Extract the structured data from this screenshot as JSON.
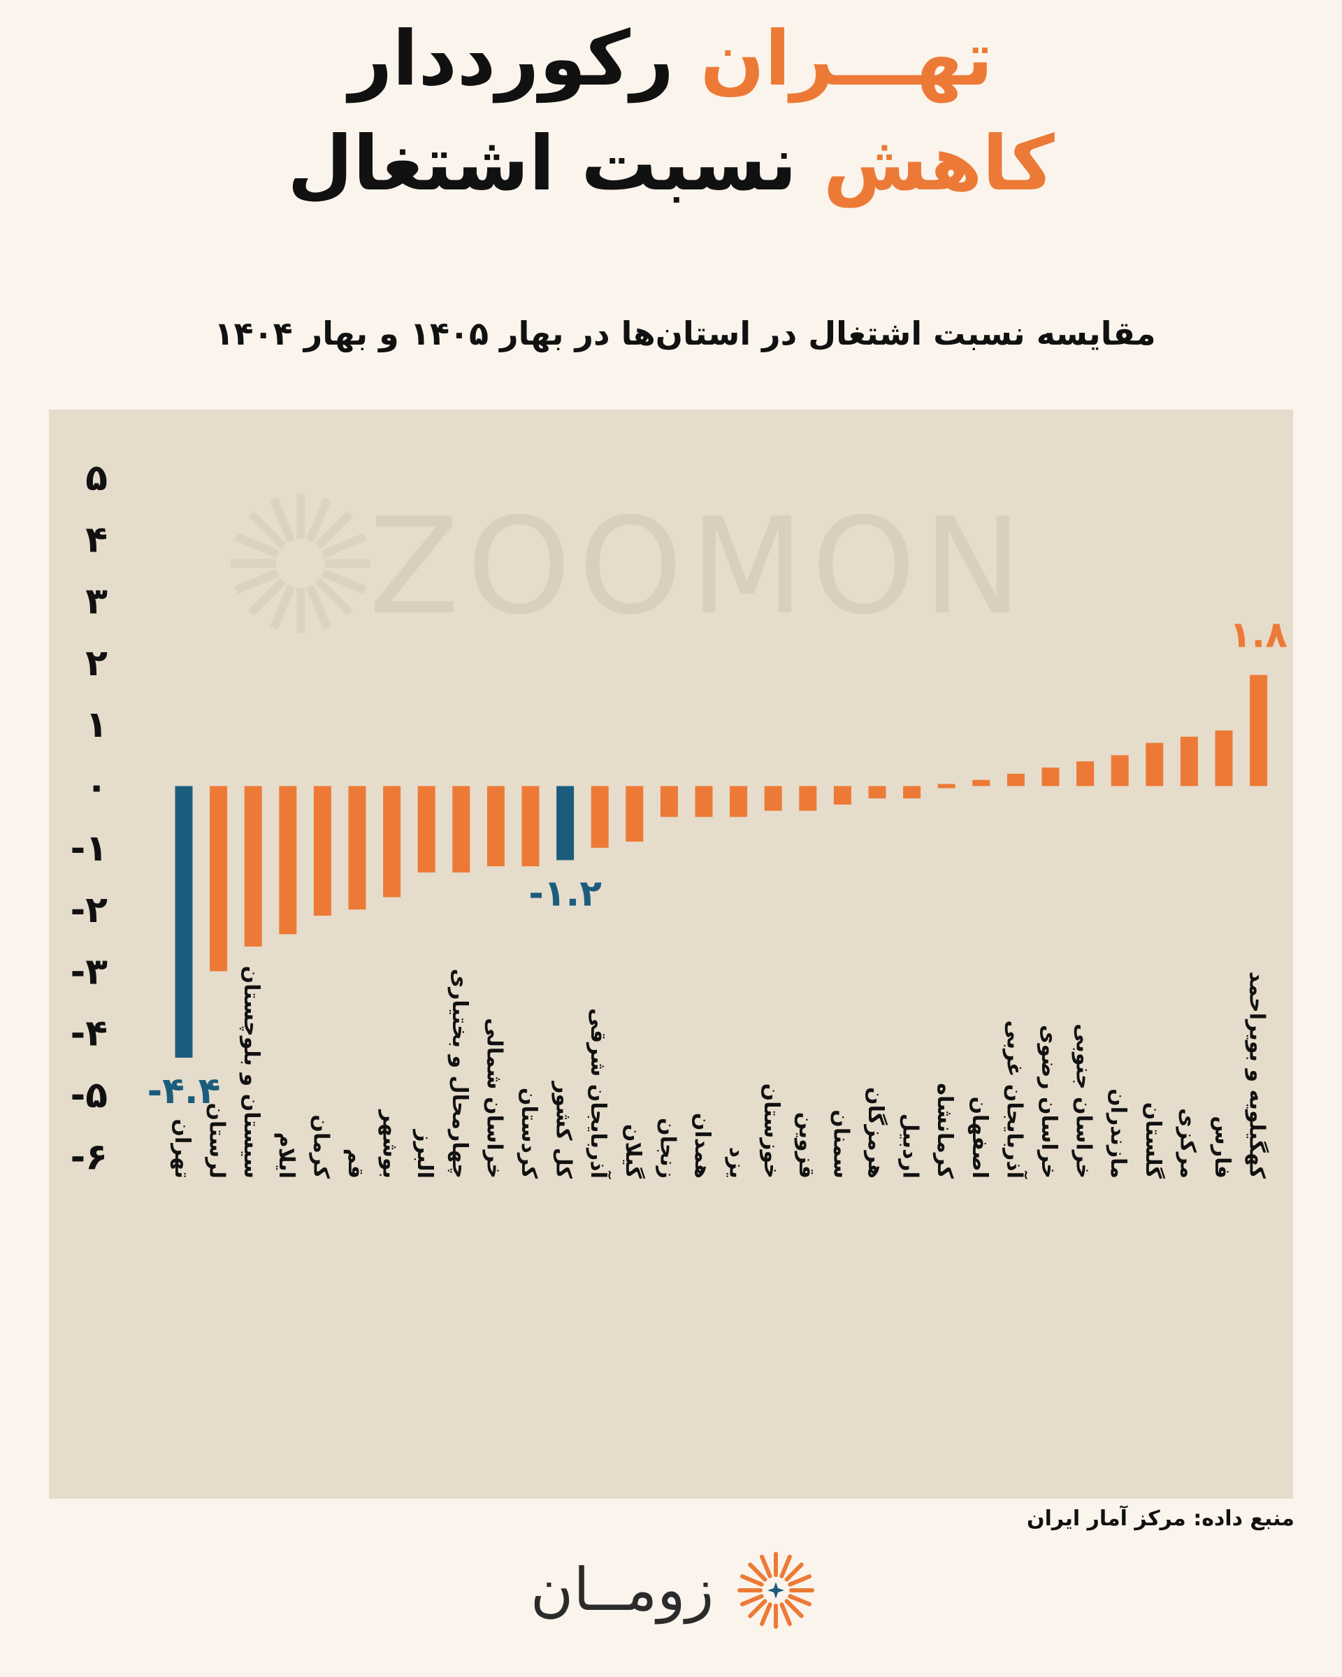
{
  "header": {
    "title_line1_accent": "تهـــران",
    "title_line1_rest": "رکورددار",
    "title_line2_accent": "کاهش",
    "title_line2_rest": "نسبت اشتغال"
  },
  "chart_data": {
    "type": "bar",
    "title": "مقایسه نسبت اشتغال در استان‌ها در بهار ۱۴۰۵ و بهار ۱۴۰۴",
    "ylim": [
      -6,
      5
    ],
    "y_ticks": [
      {
        "value": 5,
        "label": "۵"
      },
      {
        "value": 4,
        "label": "۴"
      },
      {
        "value": 3,
        "label": "۳"
      },
      {
        "value": 2,
        "label": "۲"
      },
      {
        "value": 1,
        "label": "۱"
      },
      {
        "value": 0,
        "label": "۰"
      },
      {
        "value": -1,
        "label": "-۱"
      },
      {
        "value": -2,
        "label": "-۲"
      },
      {
        "value": -3,
        "label": "-۳"
      },
      {
        "value": -4,
        "label": "-۴"
      },
      {
        "value": -5,
        "label": "-۵"
      },
      {
        "value": -6,
        "label": "-۶"
      }
    ],
    "categories": [
      "تهران",
      "لرستان",
      "سیستان و بلوچستان",
      "ایلام",
      "کرمان",
      "قم",
      "بوشهر",
      "البرز",
      "چهارمحال و بختیاری",
      "خراسان شمالی",
      "کردستان",
      "کل کشور",
      "آذربایجان شرقی",
      "گیلان",
      "زنجان",
      "همدان",
      "یزد",
      "خوزستان",
      "قزوین",
      "سمنان",
      "هرمزگان",
      "اردبیل",
      "کرمانشاه",
      "اصفهان",
      "آذربایجان غربی",
      "خراسان رضوی",
      "خراسان جنوبی",
      "مازندران",
      "گلستان",
      "مرکزی",
      "فارس",
      "کهگیلویه و بویراحمد"
    ],
    "values": [
      -4.4,
      -3.0,
      -2.6,
      -2.4,
      -2.1,
      -2.0,
      -1.8,
      -1.4,
      -1.4,
      -1.3,
      -1.3,
      -1.2,
      -1.0,
      -0.9,
      -0.5,
      -0.5,
      -0.5,
      -0.4,
      -0.4,
      -0.3,
      -0.2,
      -0.2,
      0.0,
      0.1,
      0.2,
      0.3,
      0.4,
      0.5,
      0.7,
      0.8,
      0.9,
      1.8
    ],
    "highlight_indices": [
      0,
      11
    ],
    "data_labels": [
      {
        "index": 0,
        "text": "-۴.۴"
      },
      {
        "index": 11,
        "text": "-۱.۲"
      },
      {
        "index": 31,
        "text": "۱.۸"
      }
    ],
    "colors": {
      "default": "#ec7a36",
      "highlight": "#1b5c7d"
    },
    "legend": "none",
    "grid": false
  },
  "watermark": "ZOOMON",
  "source": "منبع داده: مرکز آمار ایران",
  "logo_text": "زومــان",
  "colors": {
    "background": "#faf4ec",
    "panel": "#e6dccb",
    "accent": "#ec7a36",
    "highlight": "#1b5c7d",
    "text": "#111111"
  }
}
